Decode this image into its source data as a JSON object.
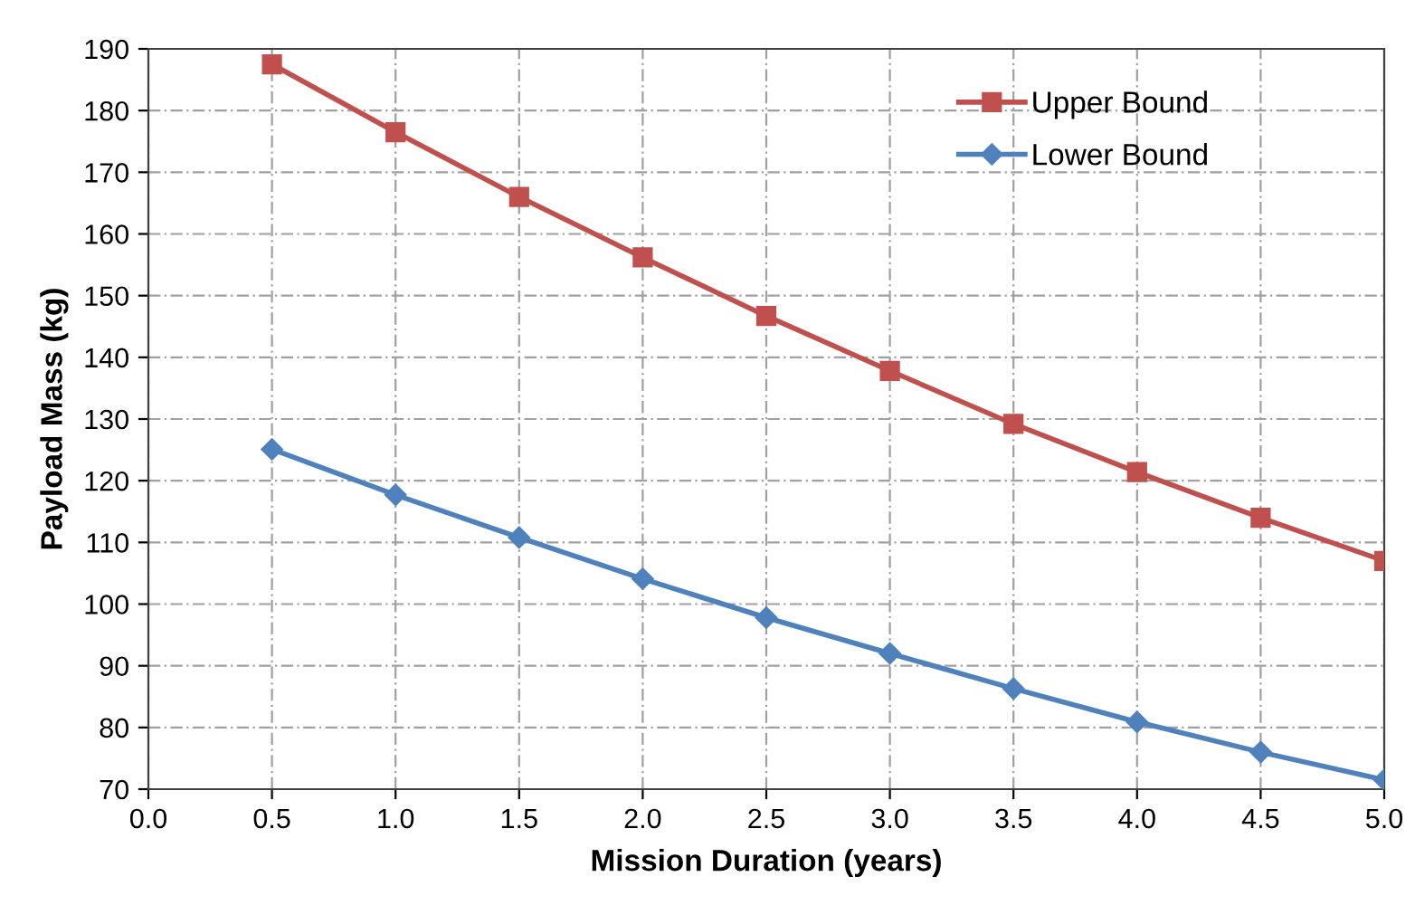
{
  "chart_data": {
    "type": "line",
    "xlabel": "Mission Duration (years)",
    "ylabel": "Payload Mass (kg)",
    "x": [
      0.5,
      1.0,
      1.5,
      2.0,
      2.5,
      3.0,
      3.5,
      4.0,
      4.5,
      5.0
    ],
    "series": [
      {
        "name": "Upper Bound",
        "color": "#c0504d",
        "marker": "square",
        "values": [
          187.5,
          176.5,
          166,
          156.2,
          146.7,
          137.8,
          129.2,
          121.4,
          114,
          107
        ]
      },
      {
        "name": "Lower Bound",
        "color": "#4f81bd",
        "marker": "diamond",
        "values": [
          125.1,
          117.7,
          110.8,
          104.1,
          97.8,
          92,
          86.3,
          80.9,
          76,
          71.5
        ]
      }
    ],
    "xlim": [
      0,
      5
    ],
    "xticks": [
      {
        "value": 0,
        "label": "0.0"
      },
      {
        "value": 0.5,
        "label": "0.5"
      },
      {
        "value": 1,
        "label": "1.0"
      },
      {
        "value": 1.5,
        "label": "1.5"
      },
      {
        "value": 2,
        "label": "2.0"
      },
      {
        "value": 2.5,
        "label": "2.5"
      },
      {
        "value": 3,
        "label": "3.0"
      },
      {
        "value": 3.5,
        "label": "3.5"
      },
      {
        "value": 4,
        "label": "4.0"
      },
      {
        "value": 4.5,
        "label": "4.5"
      },
      {
        "value": 5,
        "label": "5.0"
      }
    ],
    "ylim": [
      70,
      190
    ],
    "yticks": [
      70,
      80,
      90,
      100,
      110,
      120,
      130,
      140,
      150,
      160,
      170,
      180,
      190
    ],
    "grid": true,
    "legend": "top right",
    "line_style": "solid"
  }
}
